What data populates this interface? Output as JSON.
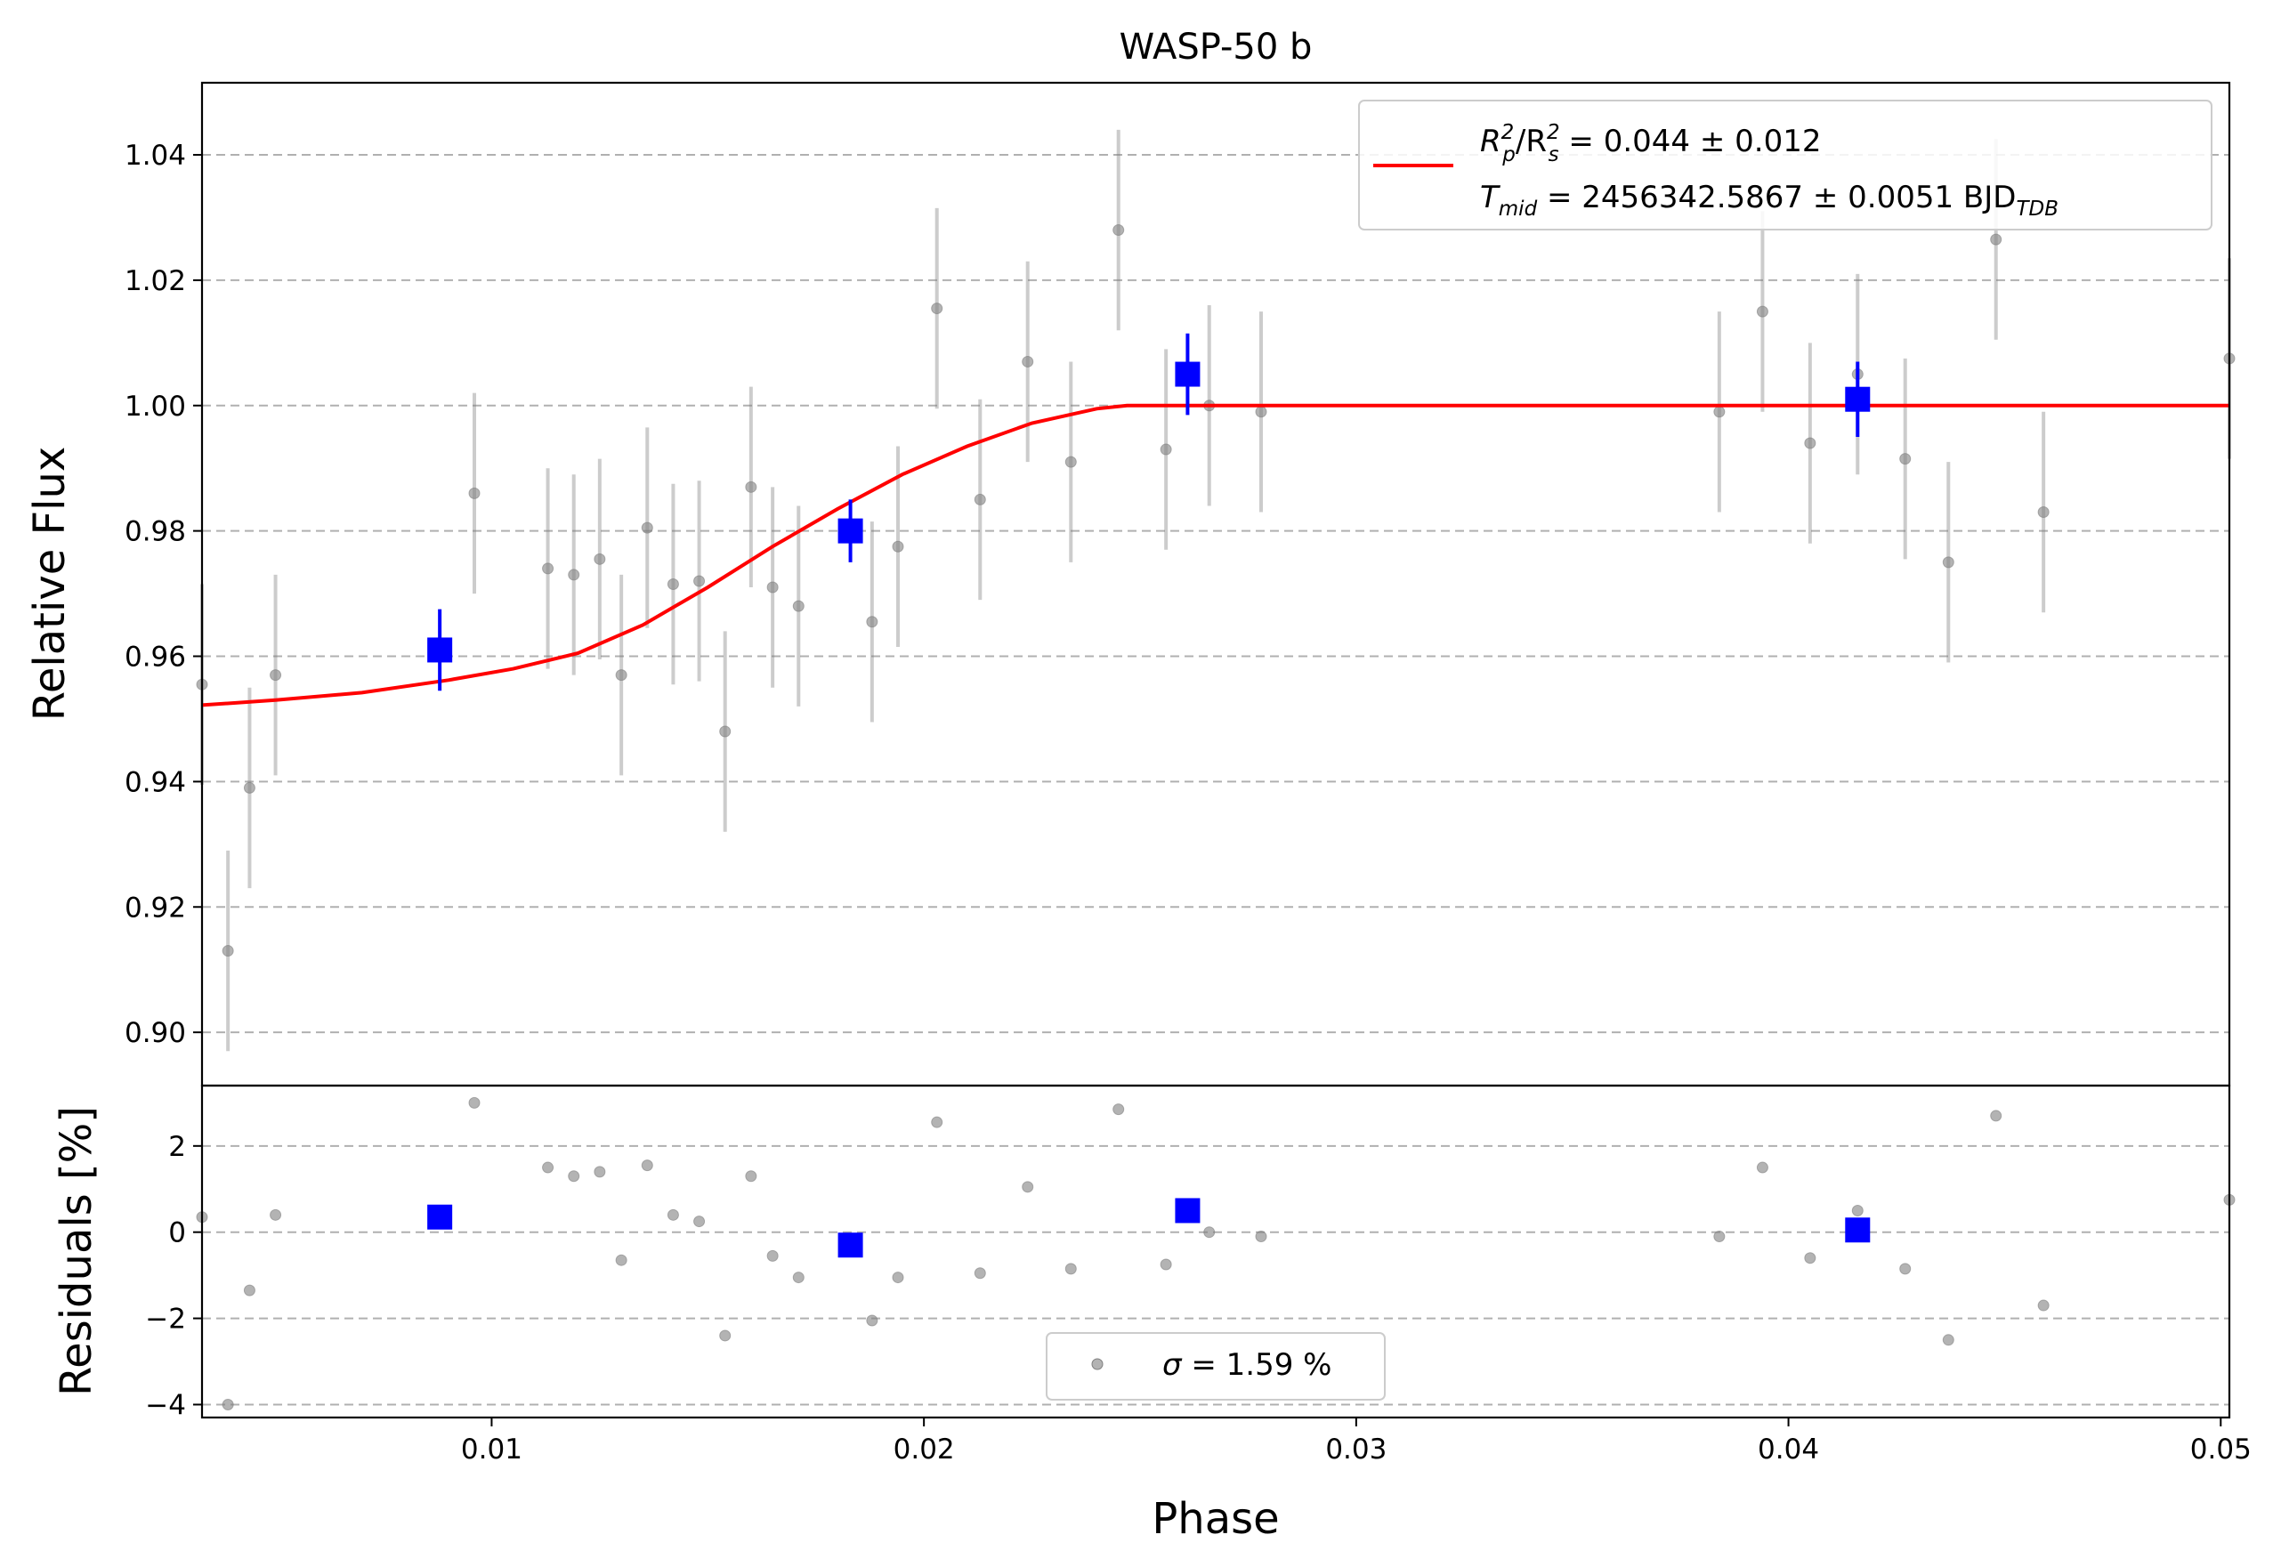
{
  "chart_data": [
    {
      "type": "scatter",
      "title": "WASP-50 b",
      "xlabel": "",
      "ylabel": "Relative Flux",
      "xlim": [
        0.0033,
        0.0502
      ],
      "ylim": [
        0.8915,
        1.0515
      ],
      "grid": "y-dashed",
      "yticks": [
        0.9,
        0.92,
        0.94,
        0.96,
        0.98,
        1.0,
        1.02,
        1.04
      ],
      "ytick_labels": [
        "0.90",
        "0.92",
        "0.94",
        "0.96",
        "0.98",
        "1.00",
        "1.02",
        "1.04"
      ],
      "legend": {
        "placement": "top-right",
        "line1_a": "R",
        "line1_a_sup": "2",
        "line1_a_sub": "p",
        "line1_b": "/R",
        "line1_b_sup": "2",
        "line1_b_sub": "s",
        "line1_c": " = 0.044 ± 0.012",
        "line2_a": "T",
        "line2_a_sub": "mid",
        "line2_b": " = 2456342.5867 ± 0.0051 BJD",
        "line2_b_sub": "TDB"
      },
      "series": [
        {
          "kind": "raw",
          "color": "#808080",
          "points": [
            {
              "x": 0.0033,
              "y": 0.9555,
              "err": 0.016
            },
            {
              "x": 0.0039,
              "y": 0.913,
              "err": 0.016
            },
            {
              "x": 0.0044,
              "y": 0.939,
              "err": 0.016
            },
            {
              "x": 0.005,
              "y": 0.957,
              "err": 0.016
            },
            {
              "x": 0.0096,
              "y": 0.986,
              "err": 0.016
            },
            {
              "x": 0.0113,
              "y": 0.974,
              "err": 0.016
            },
            {
              "x": 0.0119,
              "y": 0.973,
              "err": 0.016
            },
            {
              "x": 0.0125,
              "y": 0.9755,
              "err": 0.016
            },
            {
              "x": 0.013,
              "y": 0.957,
              "err": 0.016
            },
            {
              "x": 0.0136,
              "y": 0.9805,
              "err": 0.016
            },
            {
              "x": 0.0142,
              "y": 0.9715,
              "err": 0.016
            },
            {
              "x": 0.0148,
              "y": 0.972,
              "err": 0.016
            },
            {
              "x": 0.0154,
              "y": 0.948,
              "err": 0.016
            },
            {
              "x": 0.016,
              "y": 0.987,
              "err": 0.016
            },
            {
              "x": 0.0165,
              "y": 0.971,
              "err": 0.016
            },
            {
              "x": 0.0171,
              "y": 0.968,
              "err": 0.016
            },
            {
              "x": 0.0188,
              "y": 0.9655,
              "err": 0.016
            },
            {
              "x": 0.0194,
              "y": 0.9775,
              "err": 0.016
            },
            {
              "x": 0.0203,
              "y": 1.0155,
              "err": 0.016
            },
            {
              "x": 0.0213,
              "y": 0.985,
              "err": 0.016
            },
            {
              "x": 0.0224,
              "y": 1.007,
              "err": 0.016
            },
            {
              "x": 0.0234,
              "y": 0.991,
              "err": 0.016
            },
            {
              "x": 0.0245,
              "y": 1.028,
              "err": 0.016
            },
            {
              "x": 0.0256,
              "y": 0.993,
              "err": 0.016
            },
            {
              "x": 0.0266,
              "y": 1.0,
              "err": 0.016
            },
            {
              "x": 0.0278,
              "y": 0.999,
              "err": 0.016
            },
            {
              "x": 0.0384,
              "y": 0.999,
              "err": 0.016
            },
            {
              "x": 0.0394,
              "y": 1.015,
              "err": 0.016
            },
            {
              "x": 0.0405,
              "y": 0.994,
              "err": 0.016
            },
            {
              "x": 0.0416,
              "y": 1.005,
              "err": 0.016
            },
            {
              "x": 0.0427,
              "y": 0.9915,
              "err": 0.016
            },
            {
              "x": 0.0437,
              "y": 0.975,
              "err": 0.016
            },
            {
              "x": 0.0448,
              "y": 1.0265,
              "err": 0.016
            },
            {
              "x": 0.0459,
              "y": 0.983,
              "err": 0.016
            },
            {
              "x": 0.0502,
              "y": 1.0075,
              "err": 0.016
            }
          ]
        },
        {
          "kind": "binned",
          "color": "#0000ff",
          "points": [
            {
              "x": 0.0088,
              "y": 0.961,
              "err": 0.0065
            },
            {
              "x": 0.0183,
              "y": 0.98,
              "err": 0.005
            },
            {
              "x": 0.0261,
              "y": 1.005,
              "err": 0.0065
            },
            {
              "x": 0.0416,
              "y": 1.001,
              "err": 0.006
            }
          ]
        },
        {
          "kind": "model",
          "color": "#ff0000",
          "x": [
            0.0033,
            0.005,
            0.007,
            0.009,
            0.0105,
            0.012,
            0.0135,
            0.015,
            0.0165,
            0.018,
            0.0195,
            0.021,
            0.0225,
            0.024,
            0.0247,
            0.03,
            0.04,
            0.0502
          ],
          "y": [
            0.9522,
            0.953,
            0.9542,
            0.9562,
            0.958,
            0.9605,
            0.965,
            0.971,
            0.9775,
            0.9835,
            0.989,
            0.9935,
            0.9972,
            0.9995,
            1.0,
            1.0,
            1.0,
            1.0
          ]
        }
      ]
    },
    {
      "type": "scatter",
      "xlabel": "Phase",
      "ylabel": "Residuals [%]",
      "xlim": [
        0.0033,
        0.0502
      ],
      "ylim": [
        -4.3,
        3.4
      ],
      "grid": "y-dashed",
      "xticks": [
        0.01,
        0.02,
        0.03,
        0.04,
        0.05
      ],
      "xtick_labels": [
        "0.01",
        "0.02",
        "0.03",
        "0.04",
        "0.05"
      ],
      "yticks": [
        -4,
        -2,
        0,
        2
      ],
      "ytick_labels": [
        "−4",
        "−2",
        "0",
        "2"
      ],
      "legend": {
        "placement": "lower-center",
        "sigma_symbol": "σ",
        "sigma_text": " = 1.59 %"
      },
      "series": [
        {
          "kind": "raw",
          "color": "#808080",
          "points": [
            {
              "x": 0.0033,
              "y": 0.35
            },
            {
              "x": 0.0039,
              "y": -4.0
            },
            {
              "x": 0.0044,
              "y": -1.35
            },
            {
              "x": 0.005,
              "y": 0.4
            },
            {
              "x": 0.0096,
              "y": 3.0
            },
            {
              "x": 0.0113,
              "y": 1.5
            },
            {
              "x": 0.0119,
              "y": 1.3
            },
            {
              "x": 0.0125,
              "y": 1.4
            },
            {
              "x": 0.013,
              "y": -0.65
            },
            {
              "x": 0.0136,
              "y": 1.55
            },
            {
              "x": 0.0142,
              "y": 0.4
            },
            {
              "x": 0.0148,
              "y": 0.25
            },
            {
              "x": 0.0154,
              "y": -2.4
            },
            {
              "x": 0.016,
              "y": 1.3
            },
            {
              "x": 0.0165,
              "y": -0.55
            },
            {
              "x": 0.0171,
              "y": -1.05
            },
            {
              "x": 0.0188,
              "y": -2.05
            },
            {
              "x": 0.0194,
              "y": -1.05
            },
            {
              "x": 0.0203,
              "y": 2.55
            },
            {
              "x": 0.0213,
              "y": -0.95
            },
            {
              "x": 0.0224,
              "y": 1.05
            },
            {
              "x": 0.0234,
              "y": -0.85
            },
            {
              "x": 0.0245,
              "y": 2.85
            },
            {
              "x": 0.0256,
              "y": -0.75
            },
            {
              "x": 0.0266,
              "y": 0.0
            },
            {
              "x": 0.0278,
              "y": -0.1
            },
            {
              "x": 0.0384,
              "y": -0.1
            },
            {
              "x": 0.0394,
              "y": 1.5
            },
            {
              "x": 0.0405,
              "y": -0.6
            },
            {
              "x": 0.0416,
              "y": 0.5
            },
            {
              "x": 0.0427,
              "y": -0.85
            },
            {
              "x": 0.0437,
              "y": -2.5
            },
            {
              "x": 0.0448,
              "y": 2.7
            },
            {
              "x": 0.0459,
              "y": -1.7
            },
            {
              "x": 0.0502,
              "y": 0.75
            }
          ]
        },
        {
          "kind": "binned",
          "color": "#0000ff",
          "points": [
            {
              "x": 0.0088,
              "y": 0.35
            },
            {
              "x": 0.0183,
              "y": -0.3
            },
            {
              "x": 0.0261,
              "y": 0.5
            },
            {
              "x": 0.0416,
              "y": 0.05
            }
          ]
        }
      ]
    }
  ]
}
